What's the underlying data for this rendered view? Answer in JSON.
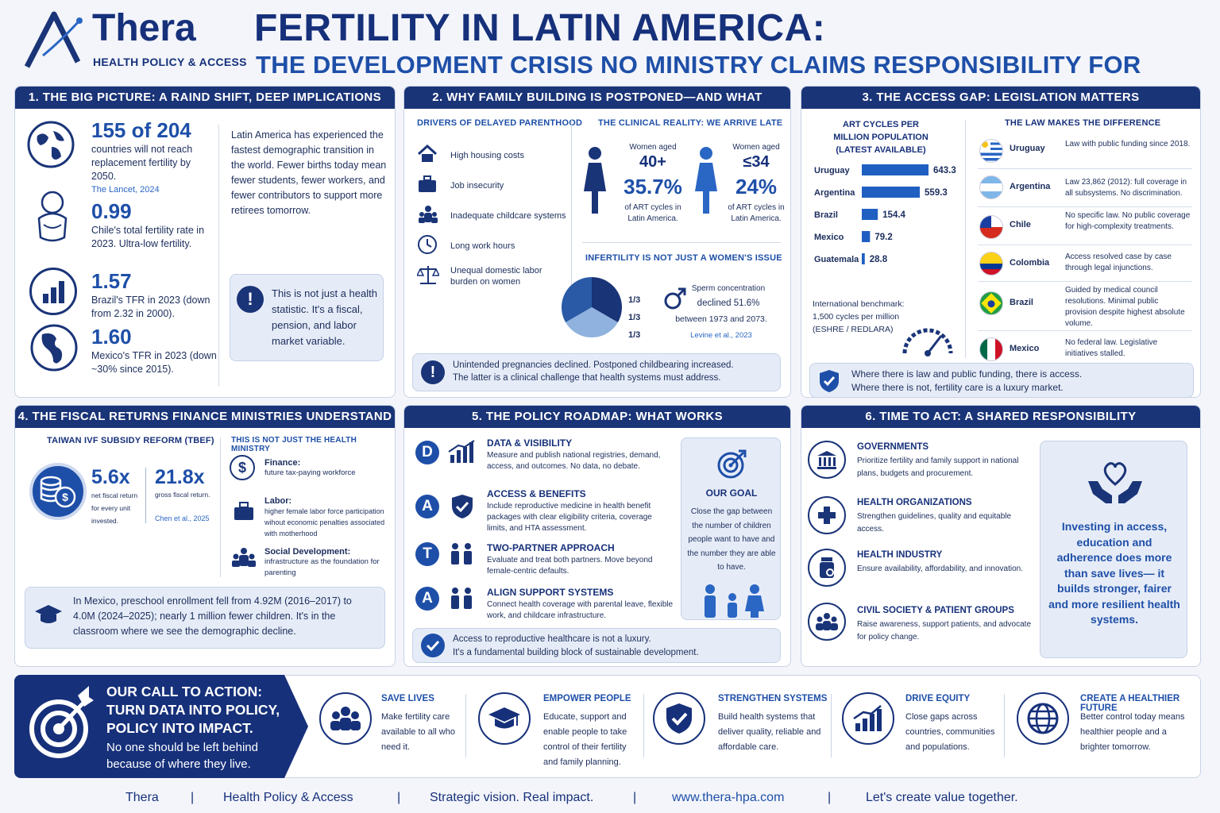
{
  "header": {
    "logo_name": "Thera",
    "logo_tagline": "HEALTH POLICY & ACCESS",
    "title": "FERTILITY IN LATIN AMERICA:",
    "subtitle": "THE DEVELOPMENT CRISIS NO MINISTRY CLAIMS RESPONSIBILITY FOR"
  },
  "s1": {
    "heading": "1. THE BIG PICTURE: A RAIND SHIFT, DEEP IMPLICATIONS",
    "stats": [
      {
        "value": "155 of 204",
        "text": "countries will not reach replacement fertility by 2050.",
        "source": "The Lancet, 2024"
      },
      {
        "value": "0.99",
        "text": "Chile's total fertility rate in 2023. Ultra-low fertility."
      },
      {
        "value": "1.57",
        "text": "Brazil's TFR in 2023 (down from 2.32 in 2000)."
      },
      {
        "value": "1.60",
        "text": "Mexico's TFR in 2023 (down ~30% since 2015)."
      }
    ],
    "intro": "Latin America has experienced the fastest demographic transition in the world. Fewer births today mean fewer students, fewer workers, and fewer contributors to support more retirees tomorrow.",
    "callout": "This is not just a health statistic. It's a fiscal, pension, and labor market variable."
  },
  "s2": {
    "heading": "2. WHY FAMILY BUILDING IS POSTPONED—AND WHAT HAPPENS",
    "drivers_title": "DRIVERS OF DELAYED PARENTHOOD",
    "drivers": [
      "High housing costs",
      "Job insecurity",
      "Inadequate childcare systems",
      "Long work hours",
      "Unequal domestic labor burden on women"
    ],
    "clinical_title": "THE CLINICAL REALITY: WE ARRIVE LATE",
    "older": {
      "label": "Women aged",
      "age": "40+",
      "pct": "35.7%",
      "text": "of ART cycles in Latin America."
    },
    "younger": {
      "label": "Women aged",
      "age": "≤34",
      "pct": "24%",
      "text": "of ART cycles in Latin America."
    },
    "infertility_title": "INFERTILITY IS NOT JUST A WOMEN'S ISSUE",
    "thirds": [
      "1/3",
      "1/3",
      "1/3"
    ],
    "sperm": {
      "line1": "Sperm concentration",
      "line2": "declined 51.6%",
      "line3": "between 1973 and 2073.",
      "source": "Levine et al., 2023"
    },
    "note": "Unintended pregnancies declined. Postponed childbearing increased. The latter is a clinical challenge that health systems must address."
  },
  "s3": {
    "heading": "3. THE ACCESS GAP: LEGISLATION MATTERS",
    "chart_title": "ART CYCLES PER MILLION POPULATION (LATEST AVAILABLE)",
    "benchmark": "International benchmark: 1,500 cycles per million (ESHRE / REDLARA)",
    "law_title": "THE LAW MAKES THE DIFFERENCE",
    "laws": [
      {
        "country": "Uruguay",
        "text": "Law with public funding since 2018."
      },
      {
        "country": "Argentina",
        "text": "Law 23,862 (2012): full coverage in all subsystems. No discrimination."
      },
      {
        "country": "Chile",
        "text": "No specific law. No public coverage for high-complexity treatments."
      },
      {
        "country": "Colombia",
        "text": "Access resolved case by case through legal injunctions."
      },
      {
        "country": "Brazil",
        "text": "Guided by medical council resolutions. Minimal public provision despite highest absolute volume."
      },
      {
        "country": "Mexico",
        "text": "No federal law. Legislative initiatives stalled."
      }
    ],
    "note_line1": "Where there is law and public funding, there is access.",
    "note_line2": "Where there is not, fertility care is a luxury market."
  },
  "chart_data": {
    "type": "bar",
    "title": "ART CYCLES PER MILLION POPULATION (LATEST AVAILABLE)",
    "categories": [
      "Uruguay",
      "Argentina",
      "Brazil",
      "Mexico",
      "Guatemala"
    ],
    "values": [
      643.3,
      559.3,
      154.4,
      79.2,
      28.8
    ],
    "value_labels": [
      "643.3",
      "559.3",
      "154.4",
      "79.2",
      "28.8"
    ],
    "xlim": [
      0,
      700
    ],
    "orientation": "horizontal",
    "bar_color": "#1f5fc2"
  },
  "s4": {
    "heading": "4. THE FISCAL RETURNS FINANCE MINISTRIES UNDERSTAND",
    "taiwan_title": "TAIWAN IVF SUBSIDY REFORM (TBEF)",
    "net_value": "5.6x",
    "net_text": "net fiscal return for every unit invested.",
    "gross_value": "21.8x",
    "gross_text": "gross fiscal return.",
    "source": "Chen et al., 2025",
    "notjust_title": "THIS IS NOT JUST THE HEALTH MINISTRY",
    "items": [
      {
        "title": "Finance:",
        "text": "future tax-paying workforce"
      },
      {
        "title": "Labor:",
        "text": "higher female labor force participation wihout economic penalties associated with motherhood"
      },
      {
        "title": "Social Development:",
        "text": "infrastructure as the foundation for parenting"
      }
    ],
    "note": "In Mexico, preschool enrollment fell from 4.92M (2016–2017) to 4.0M (2024–2025); nearly 1 million fewer children. It's in the classroom where we see the demographic decline."
  },
  "s5": {
    "heading": "5. THE POLICY ROADMAP: WHAT WORKS",
    "items": [
      {
        "letter": "D",
        "title": "DATA & VISIBILITY",
        "text": "Measure and publish national registries, demand, access, and outcomes. No data, no debate."
      },
      {
        "letter": "A",
        "title": "ACCESS & BENEFITS",
        "text": "Include reproductive medicine in health benefit packages with clear eligibility criteria, coverage limits, and HTA assessment."
      },
      {
        "letter": "T",
        "title": "TWO-PARTNER APPROACH",
        "text": "Evaluate and treat both partners. Move beyond female-centric defaults."
      },
      {
        "letter": "A",
        "title": "ALIGN SUPPORT SYSTEMS",
        "text": "Connect health coverage with parental leave, flexible work, and childcare infrastructure."
      }
    ],
    "goal_title": "OUR GOAL",
    "goal_text": "Close the gap between the number of children people want to have and the number they are able to have.",
    "note_line1": "Access to reproductive healthcare is not a luxury.",
    "note_line2": "It's a fundamental building block of sustainable development."
  },
  "s6": {
    "heading": "6. TIME TO ACT: A SHARED RESPONSIBILITY",
    "items": [
      {
        "title": "GOVERNMENTS",
        "text": "Prioritize fertility and family support in national plans, budgets and procurement."
      },
      {
        "title": "HEALTH ORGANIZATIONS",
        "text": "Strengthen guidelines, quality and equitable access."
      },
      {
        "title": "HEALTH INDUSTRY",
        "text": "Ensure availability, affordability, and innovation."
      },
      {
        "title": "CIVIL SOCIETY & PATIENT GROUPS",
        "text": "Raise awareness, support patients, and advocate for policy change."
      }
    ],
    "callout": "Investing in access, education and adherence does more than save lives— it builds stronger, fairer and more resilient health systems."
  },
  "cta": {
    "line1": "OUR CALL TO ACTION:",
    "line2": "TURN DATA INTO POLICY,",
    "line3": "POLICY INTO IMPACT.",
    "line4": "No one should be left behind",
    "line5": "because of where they live.",
    "items": [
      {
        "title": "SAVE LIVES",
        "text": "Make fertility care available to all who need it."
      },
      {
        "title": "EMPOWER PEOPLE",
        "text": "Educate, support and enable people to take control of their fertility and family planning."
      },
      {
        "title": "STRENGTHEN SYSTEMS",
        "text": "Build health systems that deliver quality, reliable and affordable care."
      },
      {
        "title": "DRIVE EQUITY",
        "text": "Close gaps across countries, communities and populations."
      },
      {
        "title": "CREATE A HEALTHIER FUTURE",
        "text": "Better control today means healthier people and a brighter tomorrow."
      }
    ]
  },
  "footer": [
    "Thera",
    "Health Policy & Access",
    "Strategic vision. Real impact.",
    "www.thera-hpa.com",
    "Let's create value together."
  ]
}
